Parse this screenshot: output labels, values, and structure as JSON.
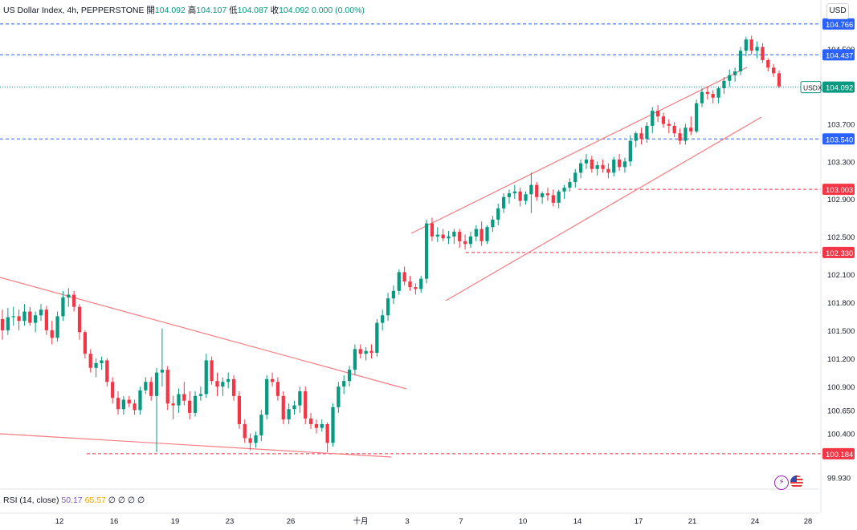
{
  "header": {
    "symbol": "US Dollar Index, 4h, PEPPERSTONE",
    "open_label": "開",
    "open": "104.092",
    "high_label": "高",
    "high": "104.107",
    "low_label": "低",
    "low": "104.087",
    "close_label": "收",
    "close": "104.092",
    "change": "0.000 (0.00%)"
  },
  "currency_button": "USD",
  "rsi": {
    "label": "RSI (14, close)",
    "v1": "50.17",
    "v2": "65.57",
    "extra": "∅ ∅ ∅ ∅"
  },
  "colors": {
    "up": "#089981",
    "down": "#f23645",
    "blue": "#2962ff",
    "red": "#f23645"
  },
  "chart_data": {
    "type": "candlestick",
    "ylim": [
      99.85,
      104.85
    ],
    "yticks": [
      99.93,
      100.4,
      100.65,
      100.9,
      101.2,
      101.5,
      101.8,
      102.1,
      102.5,
      102.9,
      103.3,
      103.7,
      104.5
    ],
    "ytick_labels": [
      "99.930",
      "100.400",
      "100.650",
      "100.900",
      "101.200",
      "101.500",
      "101.800",
      "102.100",
      "102.500",
      "102.900",
      "103.300",
      "103.700",
      "104.500"
    ],
    "xtick_labels": [
      "12",
      "16",
      "19",
      "23",
      "26",
      "十月",
      "3",
      "7",
      "10",
      "14",
      "17",
      "21",
      "24",
      "28"
    ],
    "price_levels": [
      {
        "value": 104.766,
        "label": "104.766",
        "style": "blue"
      },
      {
        "value": 104.437,
        "label": "104.437",
        "style": "blue"
      },
      {
        "value": 103.54,
        "label": "103.540",
        "style": "blue"
      },
      {
        "value": 103.003,
        "label": "103.003",
        "style": "red"
      },
      {
        "value": 102.33,
        "label": "102.330",
        "style": "red"
      },
      {
        "value": 100.184,
        "label": "100.184",
        "style": "red"
      }
    ],
    "current": {
      "symbol": "USDX",
      "value": 104.092,
      "label": "104.092"
    },
    "candles": [
      [
        101.62,
        101.72,
        101.4,
        101.5
      ],
      [
        101.5,
        101.74,
        101.45,
        101.64
      ],
      [
        101.64,
        101.75,
        101.55,
        101.65
      ],
      [
        101.65,
        101.72,
        101.5,
        101.6
      ],
      [
        101.6,
        101.78,
        101.55,
        101.7
      ],
      [
        101.7,
        101.75,
        101.55,
        101.58
      ],
      [
        101.58,
        101.7,
        101.48,
        101.66
      ],
      [
        101.66,
        101.78,
        101.6,
        101.72
      ],
      [
        101.72,
        101.76,
        101.45,
        101.5
      ],
      [
        101.5,
        101.6,
        101.35,
        101.42
      ],
      [
        101.42,
        101.7,
        101.38,
        101.65
      ],
      [
        101.65,
        101.92,
        101.6,
        101.85
      ],
      [
        101.85,
        101.95,
        101.75,
        101.88
      ],
      [
        101.88,
        101.92,
        101.7,
        101.75
      ],
      [
        101.75,
        101.78,
        101.4,
        101.48
      ],
      [
        101.48,
        101.5,
        101.2,
        101.25
      ],
      [
        101.25,
        101.3,
        101.05,
        101.1
      ],
      [
        101.1,
        101.2,
        101.0,
        101.15
      ],
      [
        101.15,
        101.22,
        101.08,
        101.18
      ],
      [
        101.18,
        101.2,
        100.9,
        100.95
      ],
      [
        100.95,
        101.0,
        100.72,
        100.78
      ],
      [
        100.78,
        100.85,
        100.6,
        100.66
      ],
      [
        100.66,
        100.8,
        100.6,
        100.76
      ],
      [
        100.76,
        100.8,
        100.68,
        100.72
      ],
      [
        100.72,
        100.76,
        100.6,
        100.65
      ],
      [
        100.65,
        100.9,
        100.6,
        100.86
      ],
      [
        100.86,
        101.0,
        100.82,
        100.95
      ],
      [
        100.95,
        101.0,
        100.75,
        100.8
      ],
      [
        100.8,
        101.1,
        100.2,
        101.05
      ],
      [
        101.05,
        101.52,
        100.9,
        101.08
      ],
      [
        101.08,
        101.12,
        100.65,
        100.72
      ],
      [
        100.72,
        100.8,
        100.55,
        100.7
      ],
      [
        100.7,
        100.88,
        100.62,
        100.82
      ],
      [
        100.82,
        100.95,
        100.7,
        100.75
      ],
      [
        100.75,
        100.85,
        100.55,
        100.62
      ],
      [
        100.62,
        100.85,
        100.58,
        100.8
      ],
      [
        100.8,
        100.9,
        100.75,
        100.82
      ],
      [
        100.82,
        101.25,
        100.78,
        101.18
      ],
      [
        101.18,
        101.22,
        100.92,
        100.96
      ],
      [
        100.96,
        101.05,
        100.8,
        100.9
      ],
      [
        100.9,
        101.0,
        100.8,
        100.95
      ],
      [
        100.95,
        101.05,
        100.88,
        100.98
      ],
      [
        100.98,
        101.02,
        100.75,
        100.8
      ],
      [
        100.8,
        100.85,
        100.45,
        100.5
      ],
      [
        100.5,
        100.55,
        100.3,
        100.35
      ],
      [
        100.35,
        100.4,
        100.22,
        100.3
      ],
      [
        100.3,
        100.42,
        100.25,
        100.38
      ],
      [
        100.38,
        100.65,
        100.32,
        100.6
      ],
      [
        100.6,
        101.02,
        100.55,
        100.98
      ],
      [
        100.98,
        101.05,
        100.9,
        100.95
      ],
      [
        100.95,
        101.0,
        100.75,
        100.8
      ],
      [
        100.8,
        100.85,
        100.5,
        100.55
      ],
      [
        100.55,
        100.72,
        100.5,
        100.66
      ],
      [
        100.66,
        100.75,
        100.6,
        100.7
      ],
      [
        100.7,
        100.9,
        100.62,
        100.85
      ],
      [
        100.85,
        100.9,
        100.5,
        100.56
      ],
      [
        100.56,
        100.62,
        100.45,
        100.5
      ],
      [
        100.5,
        100.55,
        100.4,
        100.46
      ],
      [
        100.46,
        100.55,
        100.42,
        100.5
      ],
      [
        100.5,
        100.52,
        100.2,
        100.3
      ],
      [
        100.3,
        100.72,
        100.26,
        100.68
      ],
      [
        100.68,
        100.95,
        100.62,
        100.9
      ],
      [
        100.9,
        101.02,
        100.82,
        100.96
      ],
      [
        100.96,
        101.12,
        100.9,
        101.08
      ],
      [
        101.08,
        101.35,
        101.02,
        101.3
      ],
      [
        101.3,
        101.35,
        101.2,
        101.25
      ],
      [
        101.25,
        101.32,
        101.18,
        101.28
      ],
      [
        101.28,
        101.35,
        101.2,
        101.26
      ],
      [
        101.26,
        101.62,
        101.22,
        101.58
      ],
      [
        101.58,
        101.72,
        101.5,
        101.66
      ],
      [
        101.66,
        101.9,
        101.6,
        101.84
      ],
      [
        101.84,
        101.98,
        101.78,
        101.92
      ],
      [
        101.92,
        102.15,
        101.88,
        102.12
      ],
      [
        102.12,
        102.18,
        101.98,
        102.02
      ],
      [
        102.02,
        102.08,
        101.92,
        101.96
      ],
      [
        101.96,
        102.0,
        101.88,
        101.94
      ],
      [
        101.94,
        102.08,
        101.9,
        102.05
      ],
      [
        102.05,
        102.68,
        102.0,
        102.64
      ],
      [
        102.64,
        102.7,
        102.45,
        102.5
      ],
      [
        102.5,
        102.6,
        102.44,
        102.52
      ],
      [
        102.52,
        102.58,
        102.45,
        102.48
      ],
      [
        102.48,
        102.56,
        102.42,
        102.5
      ],
      [
        102.5,
        102.58,
        102.42,
        102.55
      ],
      [
        102.55,
        102.58,
        102.38,
        102.45
      ],
      [
        102.45,
        102.52,
        102.36,
        102.42
      ],
      [
        102.42,
        102.55,
        102.38,
        102.5
      ],
      [
        102.5,
        102.62,
        102.45,
        102.58
      ],
      [
        102.58,
        102.66,
        102.4,
        102.45
      ],
      [
        102.45,
        102.62,
        102.42,
        102.6
      ],
      [
        102.6,
        102.72,
        102.55,
        102.68
      ],
      [
        102.68,
        102.85,
        102.62,
        102.8
      ],
      [
        102.8,
        102.96,
        102.75,
        102.92
      ],
      [
        102.92,
        103.0,
        102.85,
        102.96
      ],
      [
        102.96,
        103.05,
        102.9,
        102.98
      ],
      [
        102.98,
        103.02,
        102.82,
        102.88
      ],
      [
        102.88,
        102.98,
        102.84,
        102.95
      ],
      [
        102.95,
        103.18,
        102.75,
        103.05
      ],
      [
        103.05,
        103.08,
        102.88,
        102.92
      ],
      [
        102.92,
        102.98,
        102.85,
        102.96
      ],
      [
        102.96,
        103.02,
        102.88,
        102.94
      ],
      [
        102.94,
        103.0,
        102.82,
        102.86
      ],
      [
        102.86,
        103.0,
        102.8,
        102.98
      ],
      [
        102.98,
        103.05,
        102.9,
        103.02
      ],
      [
        103.02,
        103.12,
        102.98,
        103.08
      ],
      [
        103.08,
        103.22,
        103.02,
        103.18
      ],
      [
        103.18,
        103.32,
        103.12,
        103.28
      ],
      [
        103.28,
        103.38,
        103.22,
        103.32
      ],
      [
        103.32,
        103.36,
        103.18,
        103.22
      ],
      [
        103.22,
        103.3,
        103.15,
        103.26
      ],
      [
        103.26,
        103.32,
        103.18,
        103.22
      ],
      [
        103.22,
        103.28,
        103.12,
        103.18
      ],
      [
        103.18,
        103.35,
        103.14,
        103.32
      ],
      [
        103.32,
        103.38,
        103.2,
        103.24
      ],
      [
        103.24,
        103.34,
        103.18,
        103.3
      ],
      [
        103.3,
        103.58,
        103.25,
        103.52
      ],
      [
        103.52,
        103.62,
        103.45,
        103.6
      ],
      [
        103.6,
        103.66,
        103.48,
        103.54
      ],
      [
        103.54,
        103.72,
        103.5,
        103.68
      ],
      [
        103.68,
        103.88,
        103.6,
        103.84
      ],
      [
        103.84,
        103.9,
        103.72,
        103.78
      ],
      [
        103.78,
        103.82,
        103.66,
        103.7
      ],
      [
        103.7,
        103.75,
        103.6,
        103.68
      ],
      [
        103.68,
        103.72,
        103.56,
        103.6
      ],
      [
        103.6,
        103.65,
        103.48,
        103.52
      ],
      [
        103.52,
        103.7,
        103.48,
        103.66
      ],
      [
        103.66,
        103.78,
        103.58,
        103.62
      ],
      [
        103.62,
        103.96,
        103.6,
        103.92
      ],
      [
        103.92,
        104.08,
        103.88,
        104.04
      ],
      [
        104.04,
        104.1,
        103.96,
        104.02
      ],
      [
        104.02,
        104.06,
        103.92,
        103.98
      ],
      [
        103.98,
        104.1,
        103.92,
        104.08
      ],
      [
        104.08,
        104.2,
        104.02,
        104.16
      ],
      [
        104.16,
        104.28,
        104.1,
        104.22
      ],
      [
        104.22,
        104.3,
        104.15,
        104.26
      ],
      [
        104.26,
        104.52,
        104.22,
        104.48
      ],
      [
        104.48,
        104.63,
        104.42,
        104.6
      ],
      [
        104.6,
        104.64,
        104.44,
        104.48
      ],
      [
        104.48,
        104.58,
        104.4,
        104.52
      ],
      [
        104.52,
        104.56,
        104.35,
        104.38
      ],
      [
        104.38,
        104.4,
        104.26,
        104.3
      ],
      [
        104.3,
        104.34,
        104.2,
        104.24
      ],
      [
        104.24,
        104.27,
        104.08,
        104.1
      ]
    ]
  }
}
